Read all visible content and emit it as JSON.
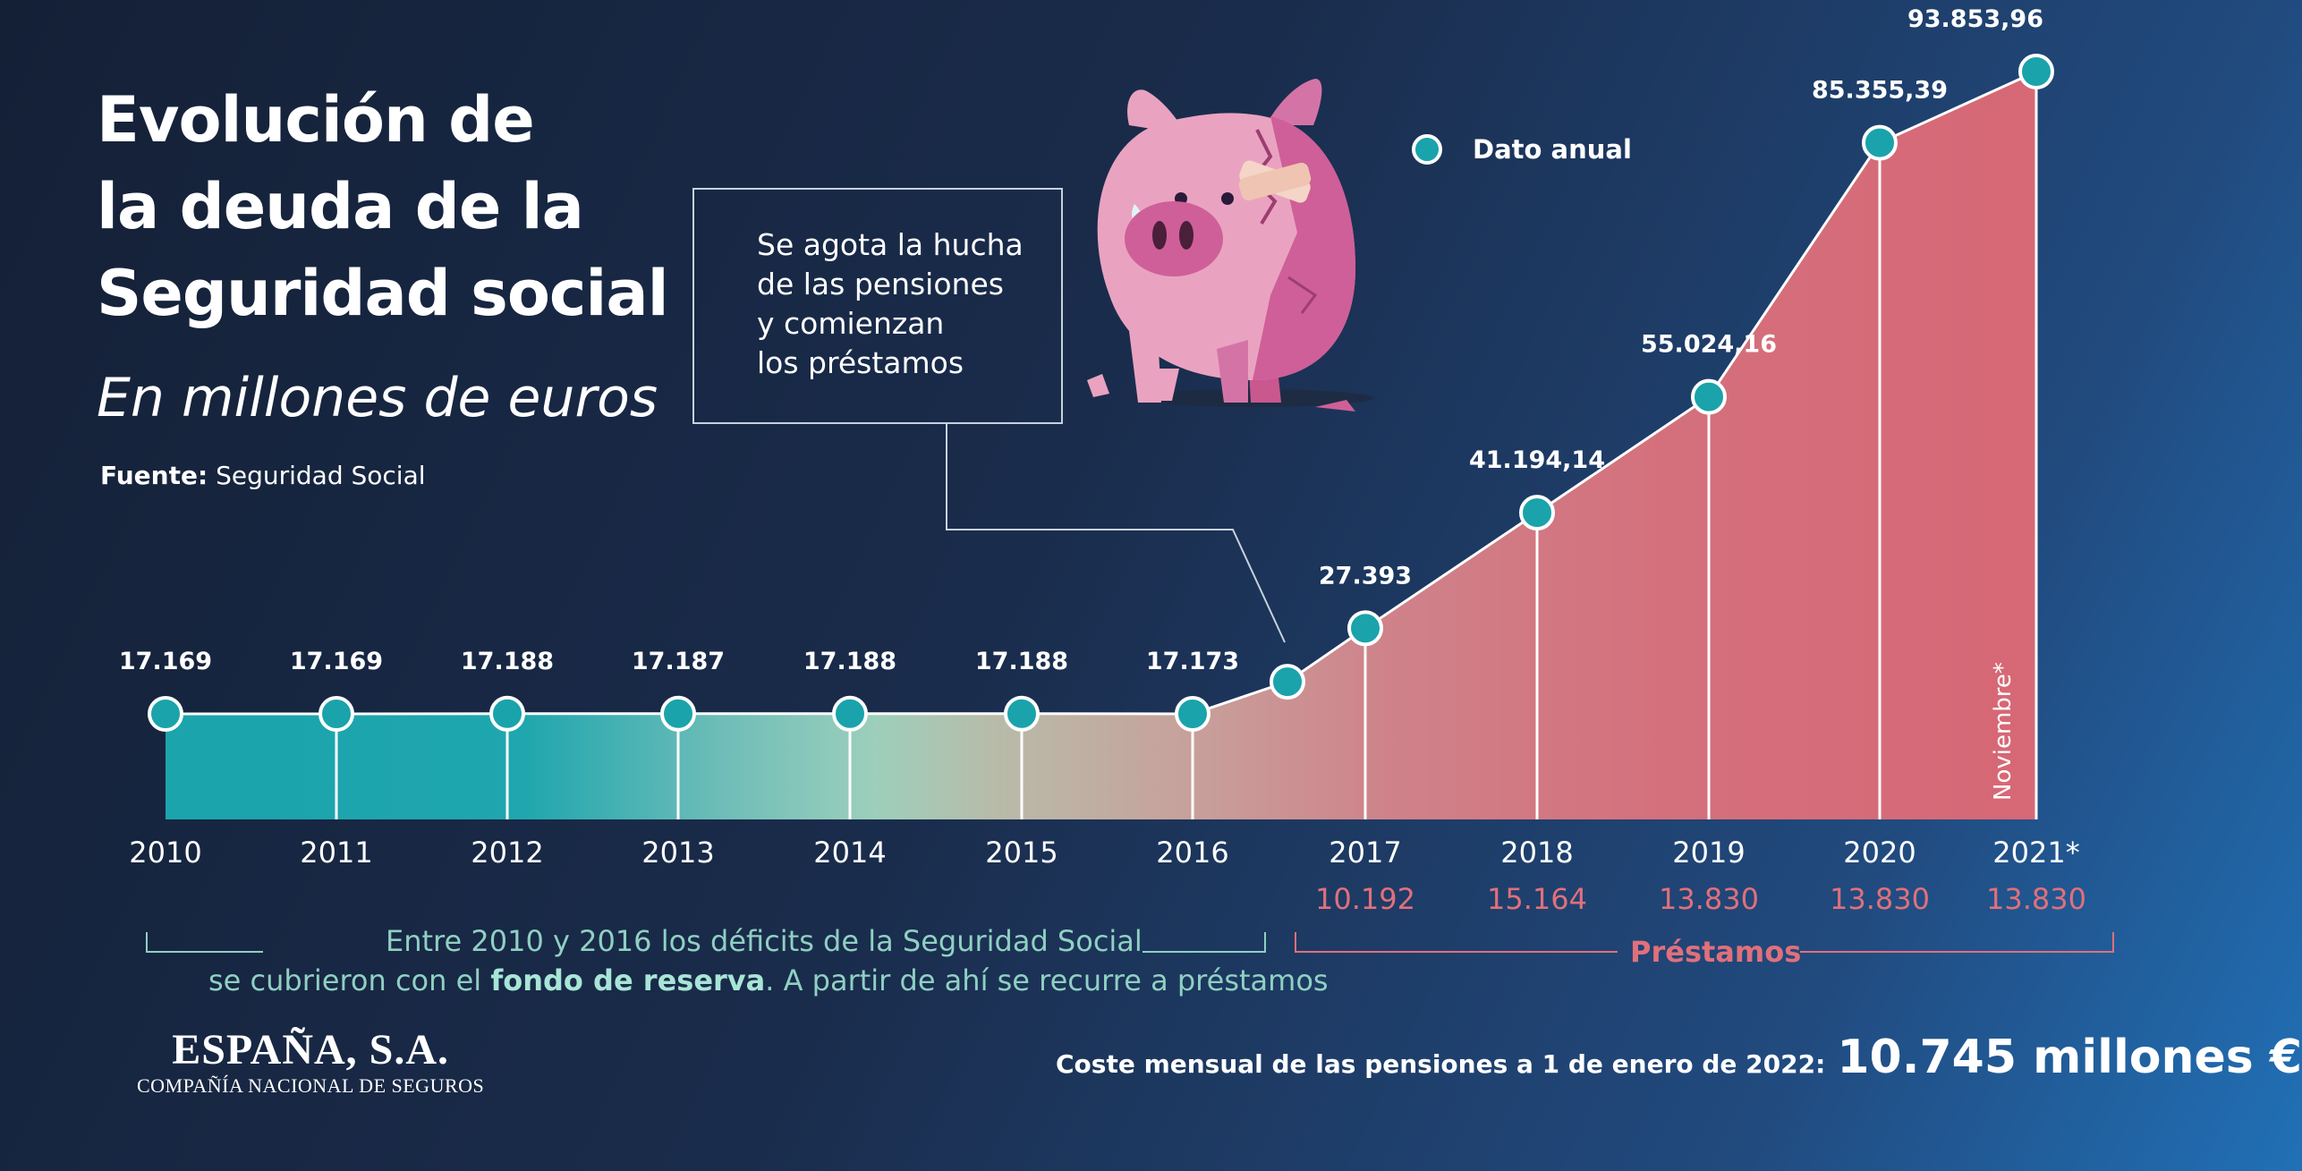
{
  "title": {
    "line1": "Evolución de",
    "line2": "la deuda de la",
    "line3": "Seguridad social"
  },
  "subtitle": "En millones de euros",
  "source": {
    "label": "Fuente:",
    "value": "Seguridad Social"
  },
  "callout": {
    "line1": "Se agota la hucha",
    "line2": "de las pensiones",
    "line3": "y comienzan",
    "line4": "los préstamos"
  },
  "legend": {
    "label": "Dato anual"
  },
  "icon": "broken-piggy-bank-icon",
  "colors": {
    "teal": "#1aa3ab",
    "pink": "#d76775",
    "note_text": "#8fd0c2",
    "loan_text": "#e0707b"
  },
  "chart_data": {
    "type": "area",
    "x": [
      "2010",
      "2011",
      "2012",
      "2013",
      "2014",
      "2015",
      "2016",
      "2016.5",
      "2017",
      "2018",
      "2019",
      "2020",
      "2021*"
    ],
    "x_tick_labels": [
      "2010",
      "2011",
      "2012",
      "2013",
      "2014",
      "2015",
      "2016",
      "",
      "2017",
      "2018",
      "2019",
      "2020",
      "2021*"
    ],
    "values": [
      17169,
      17169,
      17188,
      17187,
      17188,
      17188,
      17173,
      21000,
      27393,
      41194.14,
      55024.16,
      85355.39,
      93853.96
    ],
    "value_labels": [
      "17.169",
      "17.169",
      "17.188",
      "17.187",
      "17.188",
      "17.188",
      "17.173",
      "",
      "27.393",
      "41.194,14",
      "55.024,16",
      "85.355,39",
      "93.853,96"
    ],
    "loans": {
      "label": "Préstamos",
      "years": [
        "2017",
        "2018",
        "2019",
        "2020",
        "2021*"
      ],
      "values": [
        "10.192",
        "15.164",
        "13.830",
        "13.830",
        "13.830"
      ]
    },
    "annotation_vertical": "Noviembre*",
    "legend": "Dato anual",
    "note": {
      "part1": "Entre 2010 y 2016 los déficits de la Seguridad Social",
      "part2a": "se cubrieron con el ",
      "part2b": "fondo de reserva",
      "part2c": ". A partir de ahí se recurre a préstamos"
    }
  },
  "footer": {
    "logo_line1": "ESPAÑA, S.A.",
    "logo_line2": "COMPAÑÍA NACIONAL DE SEGUROS",
    "cost_label": "Coste mensual de las pensiones a 1 de enero de 2022:",
    "cost_value": "10.745 millones €"
  }
}
